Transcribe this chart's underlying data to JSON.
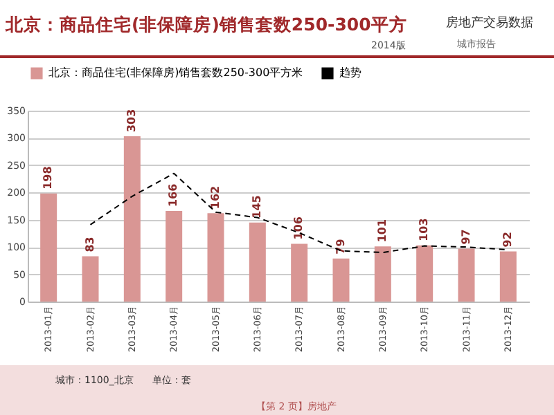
{
  "chart_data": {
    "type": "bar",
    "title": "北京：商品住宅(非保障房)销售套数250-300平方",
    "subtitle": "房地产交易数据",
    "categories": [
      "2013-01月",
      "2013-02月",
      "2013-03月",
      "2013-04月",
      "2013-05月",
      "2013-06月",
      "2013-07月",
      "2013-08月",
      "2013-09月",
      "2013-10月",
      "2013-11月",
      "2013-12月"
    ],
    "series": [
      {
        "name": "北京：商品住宅(非保障房)销售套数250-300平方米",
        "color": "#d99694",
        "values": [
          198,
          83,
          303,
          166,
          162,
          145,
          106,
          79,
          101,
          103,
          97,
          92
        ],
        "value_labels": [
          "198",
          "83",
          "303",
          "166",
          "162",
          "145",
          "106",
          "79",
          "101",
          "103",
          "97",
          "92"
        ]
      },
      {
        "name": "趋势",
        "type": "line",
        "color": "#000000",
        "line_style": "dashed",
        "values": [
          null,
          141,
          193,
          235,
          164,
          154,
          126,
          93,
          90,
          102,
          100,
          95
        ]
      }
    ],
    "ylim": [
      0,
      350
    ],
    "yticks": [
      0,
      50,
      100,
      150,
      200,
      250,
      300,
      350
    ],
    "grid": "y",
    "legend": "top",
    "annotations": [
      "2014版",
      "城市报告",
      "城市：1100_北京",
      "单位：套",
      "【第 2 页】",
      "房地产"
    ]
  }
}
